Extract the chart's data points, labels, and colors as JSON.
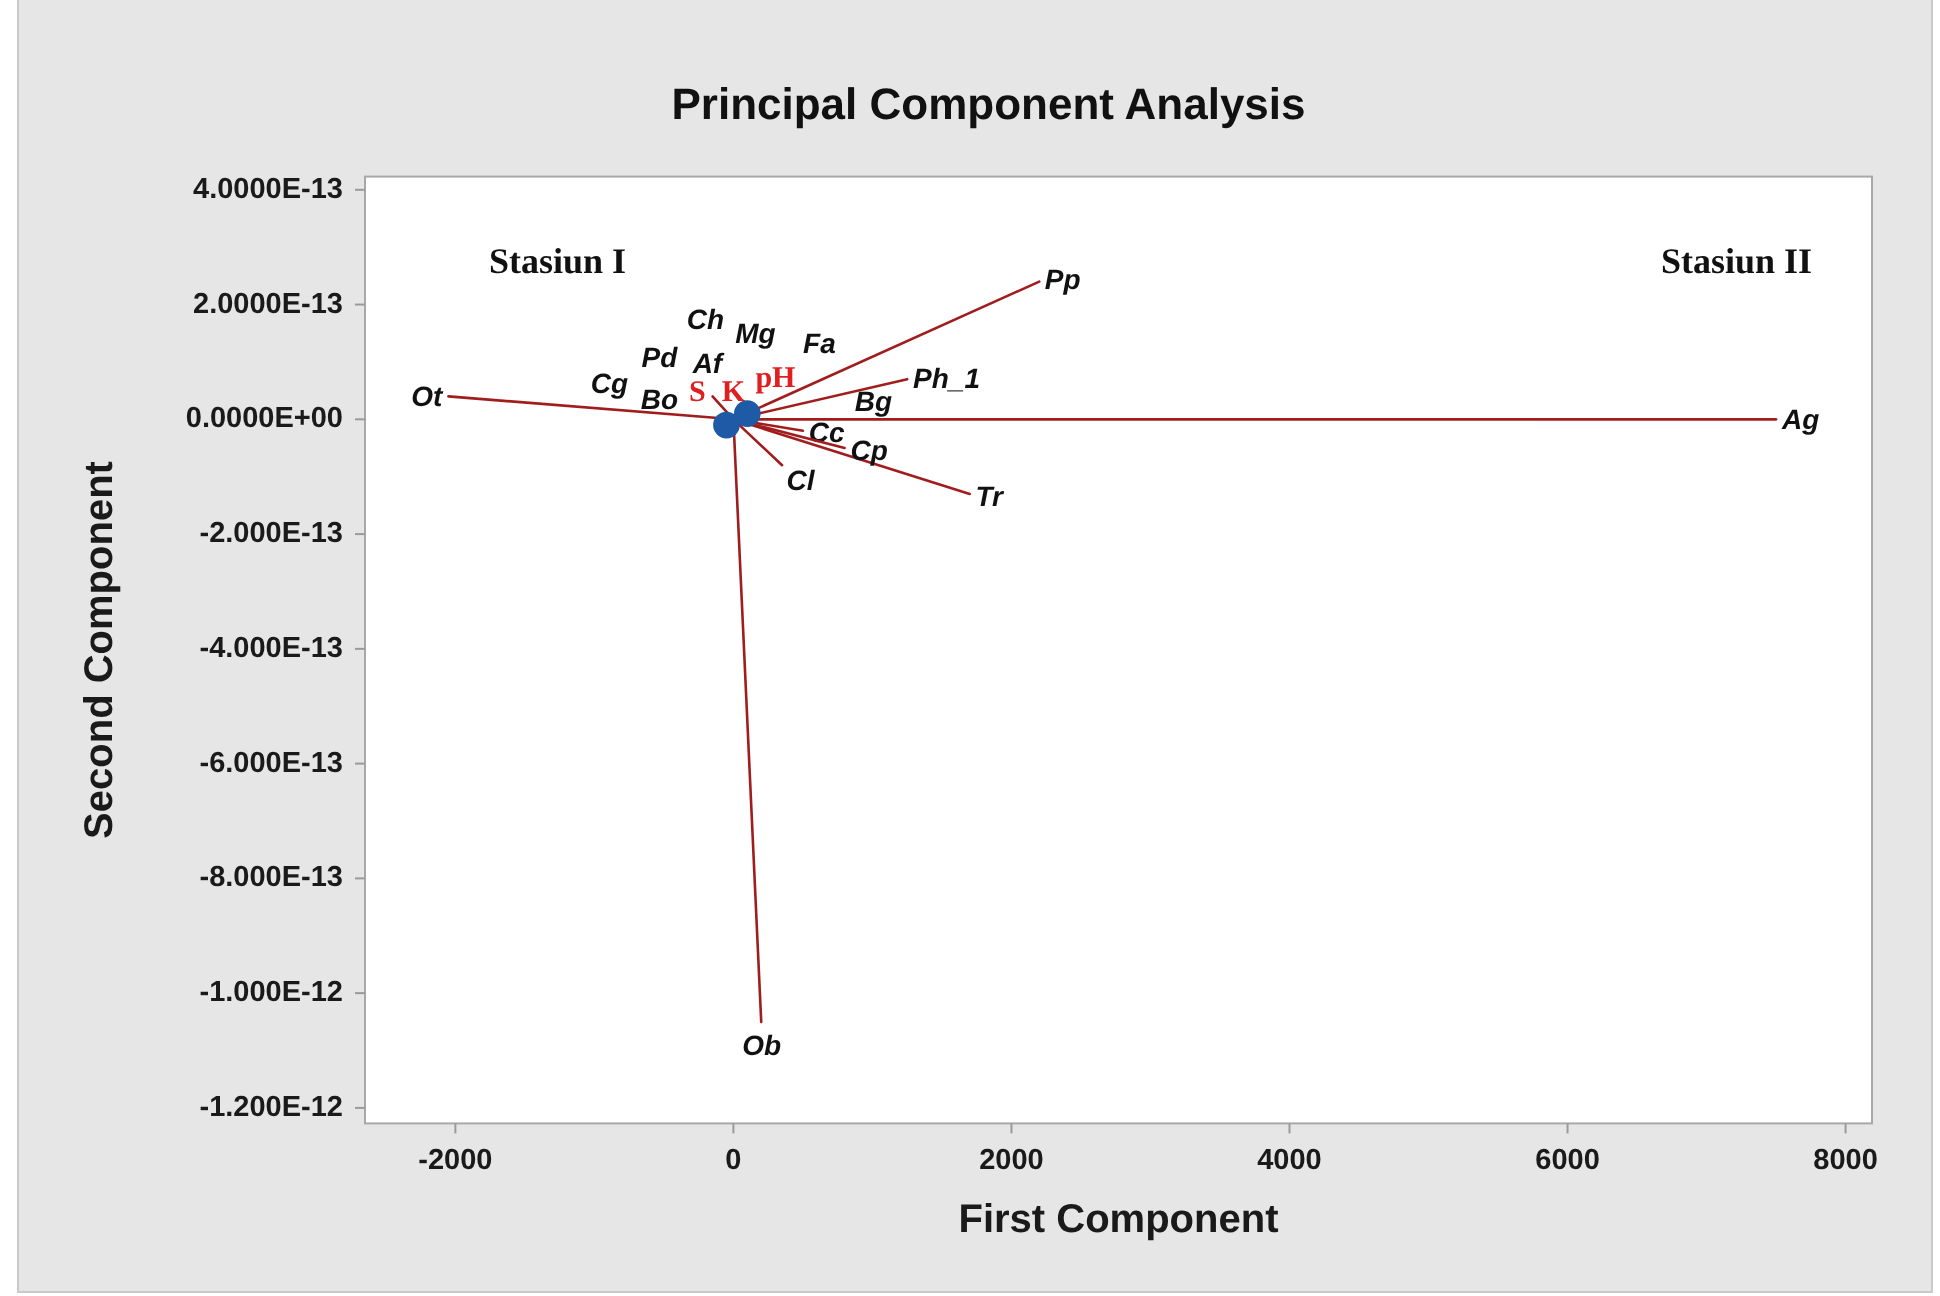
{
  "chart_data": {
    "type": "line",
    "title": "Principal Component Analysis",
    "xlabel": "First Component",
    "ylabel": "Second Component",
    "xlim": [
      -2650,
      8190
    ],
    "ylim": [
      -1.227e-12,
      4.23e-13
    ],
    "xticks": [
      -2000,
      0,
      2000,
      4000,
      6000,
      8000
    ],
    "yticks": [
      {
        "value": 4e-13,
        "label": "4.0000E-13"
      },
      {
        "value": 2e-13,
        "label": "2.0000E-13"
      },
      {
        "value": 0,
        "label": "0.0000E+00"
      },
      {
        "value": -2e-13,
        "label": "-2.000E-13"
      },
      {
        "value": -4e-13,
        "label": "-4.000E-13"
      },
      {
        "value": -6e-13,
        "label": "-6.000E-13"
      },
      {
        "value": -8e-13,
        "label": "-8.000E-13"
      },
      {
        "value": -1e-12,
        "label": "-1.000E-12"
      },
      {
        "value": -1.2e-12,
        "label": "-1.200E-12"
      }
    ],
    "series": [
      {
        "name": "Ot",
        "color": "#a11d1d",
        "x": [
          0,
          -2050
        ],
        "values": [
          0,
          4e-14
        ]
      },
      {
        "name": "Pp",
        "color": "#a11d1d",
        "x": [
          0,
          2200
        ],
        "values": [
          0,
          2.4e-13
        ]
      },
      {
        "name": "Ph_1",
        "color": "#a11d1d",
        "x": [
          0,
          1250
        ],
        "values": [
          0,
          7e-14
        ]
      },
      {
        "name": "Ag",
        "color": "#a11d1d",
        "x": [
          0,
          7500
        ],
        "values": [
          0,
          0
        ]
      },
      {
        "name": "Tr",
        "color": "#a11d1d",
        "x": [
          0,
          1700
        ],
        "values": [
          0,
          -1.3e-13
        ]
      },
      {
        "name": "Ob",
        "color": "#a11d1d",
        "x": [
          0,
          200
        ],
        "values": [
          0,
          -1.05e-12
        ]
      },
      {
        "name": "Cl",
        "color": "#a11d1d",
        "x": [
          0,
          350
        ],
        "values": [
          0,
          -8e-14
        ]
      },
      {
        "name": "Cc",
        "color": "#a11d1d",
        "x": [
          0,
          500
        ],
        "values": [
          0,
          -2e-14
        ]
      },
      {
        "name": "Cp",
        "color": "#a11d1d",
        "x": [
          0,
          800
        ],
        "values": [
          0,
          -5e-14
        ]
      },
      {
        "color": "#a11d1d",
        "x": [
          0,
          -150
        ],
        "values": [
          0,
          4e-14
        ]
      },
      {
        "type": "scatter",
        "color": "#1f5aa6",
        "marker": "circle",
        "x": [
          -50,
          100
        ],
        "values": [
          -1e-14,
          1e-14
        ]
      }
    ],
    "annotations": [
      "Stasiun I",
      "Stasiun II",
      "Ch",
      "Mg",
      "Fa",
      "Pd",
      "Af",
      "Cg",
      "Bo",
      "S",
      "K",
      "pH",
      "Bg"
    ]
  }
}
